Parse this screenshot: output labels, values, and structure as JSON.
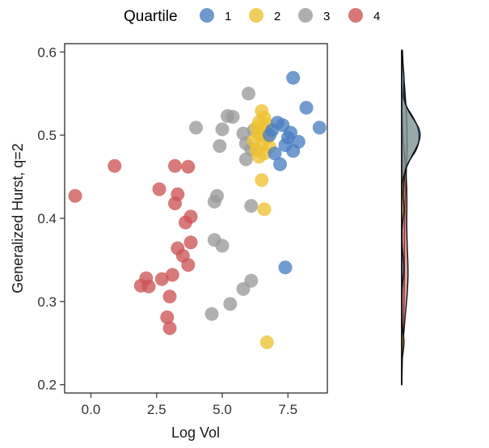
{
  "chart_data": {
    "type": "scatter",
    "title": "",
    "xlabel": "Log Vol",
    "ylabel": "Generalized Hurst, q=2",
    "xlim": [
      -1.0,
      9.0
    ],
    "ylim": [
      0.19,
      0.61
    ],
    "x_ticks": [
      0.0,
      2.5,
      5.0,
      7.5
    ],
    "x_tick_labels": [
      "0.0",
      "2.5",
      "5.0",
      "7.5"
    ],
    "y_ticks": [
      0.2,
      0.3,
      0.4,
      0.5,
      0.6
    ],
    "y_tick_labels": [
      "0.2",
      "0.3",
      "0.4",
      "0.5",
      "0.6"
    ],
    "grid": false,
    "legend": {
      "title": "Quartile",
      "placement": "top",
      "entries": [
        "1",
        "2",
        "3",
        "4"
      ]
    },
    "colors": {
      "1": "#4a7fc1",
      "2": "#eec232",
      "3": "#9a9a9a",
      "4": "#cd5555"
    },
    "marginal": {
      "type": "density",
      "axis": "y",
      "placement": "right"
    },
    "series": [
      {
        "name": "1",
        "color": "#4a7fc1",
        "points": [
          [
            7.7,
            0.569
          ],
          [
            8.2,
            0.533
          ],
          [
            8.7,
            0.509
          ],
          [
            7.1,
            0.515
          ],
          [
            7.3,
            0.512
          ],
          [
            6.9,
            0.506
          ],
          [
            7.5,
            0.497
          ],
          [
            7.9,
            0.492
          ],
          [
            7.4,
            0.488
          ],
          [
            7.7,
            0.481
          ],
          [
            7.0,
            0.478
          ],
          [
            7.2,
            0.465
          ],
          [
            7.4,
            0.341
          ],
          [
            7.6,
            0.503
          ],
          [
            6.8,
            0.5
          ]
        ]
      },
      {
        "name": "2",
        "color": "#eec232",
        "points": [
          [
            6.5,
            0.529
          ],
          [
            6.6,
            0.521
          ],
          [
            6.4,
            0.516
          ],
          [
            6.7,
            0.513
          ],
          [
            6.3,
            0.509
          ],
          [
            6.6,
            0.505
          ],
          [
            6.4,
            0.501
          ],
          [
            6.7,
            0.497
          ],
          [
            6.2,
            0.493
          ],
          [
            6.5,
            0.489
          ],
          [
            6.8,
            0.486
          ],
          [
            6.3,
            0.482
          ],
          [
            6.6,
            0.478
          ],
          [
            6.4,
            0.474
          ],
          [
            6.5,
            0.446
          ],
          [
            6.6,
            0.411
          ],
          [
            6.7,
            0.251
          ]
        ]
      },
      {
        "name": "3",
        "color": "#9a9a9a",
        "points": [
          [
            6.0,
            0.55
          ],
          [
            5.2,
            0.523
          ],
          [
            5.4,
            0.522
          ],
          [
            4.0,
            0.509
          ],
          [
            5.0,
            0.507
          ],
          [
            6.2,
            0.506
          ],
          [
            5.8,
            0.502
          ],
          [
            5.9,
            0.49
          ],
          [
            4.9,
            0.487
          ],
          [
            6.1,
            0.483
          ],
          [
            5.9,
            0.471
          ],
          [
            4.8,
            0.427
          ],
          [
            4.7,
            0.42
          ],
          [
            6.1,
            0.415
          ],
          [
            4.7,
            0.374
          ],
          [
            5.0,
            0.367
          ],
          [
            6.1,
            0.325
          ],
          [
            5.8,
            0.315
          ],
          [
            5.3,
            0.297
          ],
          [
            4.6,
            0.285
          ]
        ]
      },
      {
        "name": "4",
        "color": "#cd5555",
        "points": [
          [
            -0.6,
            0.427
          ],
          [
            0.9,
            0.463
          ],
          [
            3.2,
            0.463
          ],
          [
            3.7,
            0.462
          ],
          [
            2.6,
            0.435
          ],
          [
            3.3,
            0.429
          ],
          [
            3.2,
            0.418
          ],
          [
            3.8,
            0.402
          ],
          [
            3.6,
            0.395
          ],
          [
            3.8,
            0.371
          ],
          [
            3.3,
            0.364
          ],
          [
            3.5,
            0.355
          ],
          [
            3.7,
            0.344
          ],
          [
            3.1,
            0.332
          ],
          [
            2.7,
            0.327
          ],
          [
            2.1,
            0.328
          ],
          [
            2.2,
            0.318
          ],
          [
            1.9,
            0.319
          ],
          [
            3.0,
            0.306
          ],
          [
            2.9,
            0.281
          ],
          [
            3.0,
            0.268
          ]
        ]
      }
    ]
  }
}
